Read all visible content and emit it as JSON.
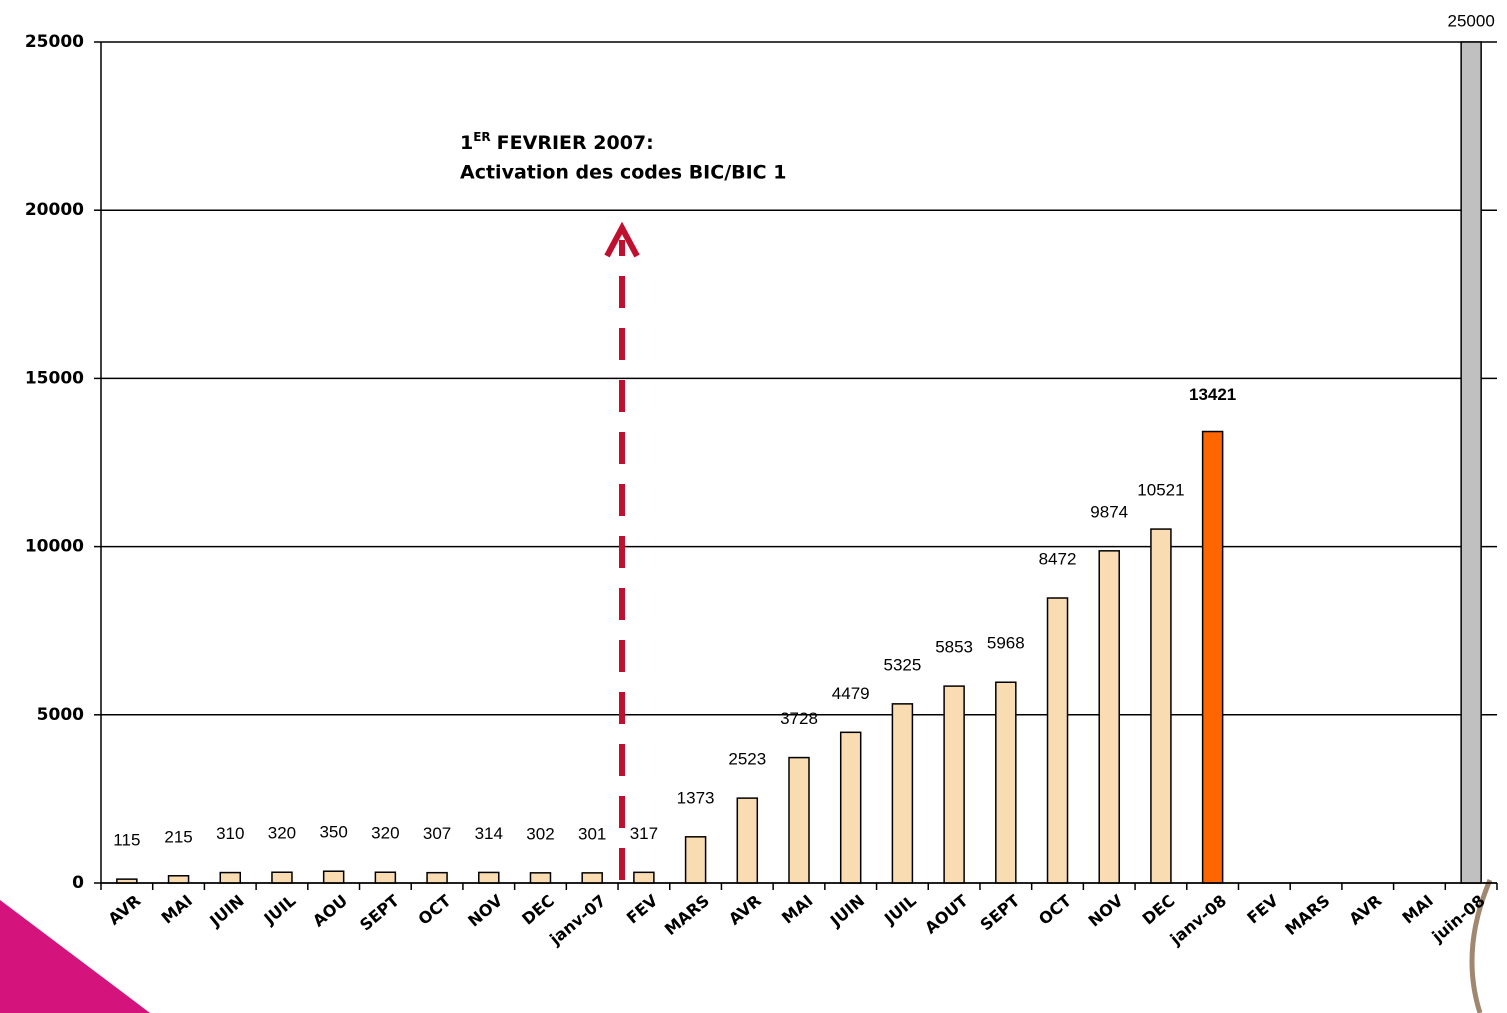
{
  "chart_data": {
    "type": "bar",
    "categories": [
      "AVR",
      "MAI",
      "JUIN",
      "JUIL",
      "AOU",
      "SEPT",
      "OCT",
      "NOV",
      "DEC",
      "janv-07",
      "FEV",
      "MARS",
      "AVR",
      "MAI",
      "JUIN",
      "JUIL",
      "AOUT",
      "SEPT",
      "OCT",
      "NOV",
      "DEC",
      "janv-08",
      "FEV",
      "MARS",
      "AVR",
      "MAI",
      "juin-08"
    ],
    "values": [
      115,
      215,
      310,
      320,
      350,
      320,
      307,
      314,
      302,
      301,
      317,
      1373,
      2523,
      3728,
      4479,
      5325,
      5853,
      5968,
      8472,
      9874,
      10521,
      13421,
      null,
      null,
      null,
      null,
      25000
    ],
    "color": "#f9dcb2",
    "colors": [
      "#f9dcb2",
      "#f9dcb2",
      "#f9dcb2",
      "#f9dcb2",
      "#f9dcb2",
      "#f9dcb2",
      "#f9dcb2",
      "#f9dcb2",
      "#f9dcb2",
      "#f9dcb2",
      "#f9dcb2",
      "#f9dcb2",
      "#f9dcb2",
      "#f9dcb2",
      "#f9dcb2",
      "#f9dcb2",
      "#f9dcb2",
      "#f9dcb2",
      "#f9dcb2",
      "#f9dcb2",
      "#f9dcb2",
      "#ff6600",
      "#f9dcb2",
      "#f9dcb2",
      "#f9dcb2",
      "#f9dcb2",
      "#c0c0c0"
    ],
    "ylim": [
      0,
      25000
    ],
    "yticks": [
      0,
      5000,
      10000,
      15000,
      20000,
      25000
    ],
    "grid": true,
    "annotation": {
      "number": "1",
      "superscript": "ER",
      "text": "FEVRIER 2007:",
      "line2": "Activation des codes BIC/BIC 1"
    }
  }
}
